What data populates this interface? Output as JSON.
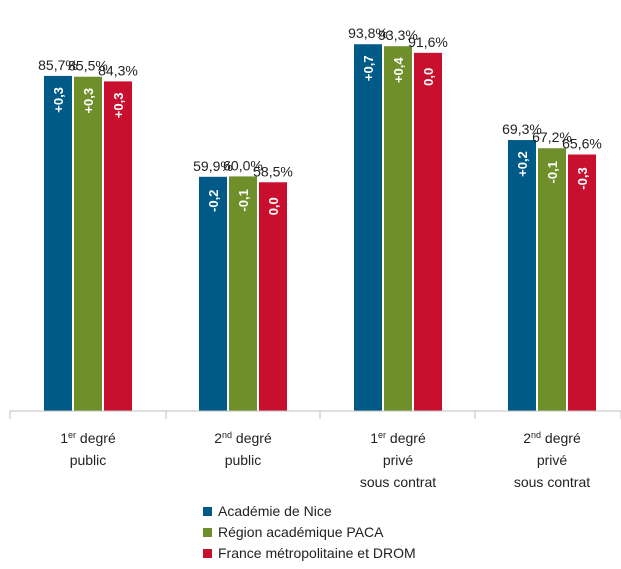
{
  "chart_data": {
    "type": "bar",
    "categories": [
      {
        "line1_main": "1",
        "line1_sup": "er",
        "line1_rest": " degré",
        "line2": "public",
        "line3": ""
      },
      {
        "line1_main": "2",
        "line1_sup": "nd",
        "line1_rest": " degré",
        "line2": "public",
        "line3": ""
      },
      {
        "line1_main": "1",
        "line1_sup": "er",
        "line1_rest": " degré",
        "line2": "privé",
        "line3": "sous contrat"
      },
      {
        "line1_main": "2",
        "line1_sup": "nd",
        "line1_rest": " degré",
        "line2": "privé",
        "line3": "sous contrat"
      }
    ],
    "series": [
      {
        "name": "Académie de Nice",
        "color": "#005a87",
        "values": [
          85.7,
          59.9,
          93.8,
          69.3
        ],
        "value_labels": [
          "85,7%",
          "59,9%",
          "93,8%",
          "69,3%"
        ],
        "delta_labels": [
          "+0,3",
          "-0,2",
          "+0,7",
          "+0,2"
        ]
      },
      {
        "name": "Région académique PACA",
        "color": "#6f8f2b",
        "values": [
          85.5,
          60.0,
          93.3,
          67.2
        ],
        "value_labels": [
          "85,5%",
          "60,0%",
          "93,3%",
          "67,2%"
        ],
        "delta_labels": [
          "+0,3",
          "-0,1",
          "+0,4",
          "-0,1"
        ]
      },
      {
        "name": "France métropolitaine et DROM",
        "color": "#c8102e",
        "values": [
          84.3,
          58.5,
          91.6,
          65.6
        ],
        "value_labels": [
          "84,3%",
          "58,5%",
          "91,6%",
          "65,6%"
        ],
        "delta_labels": [
          "+0,3",
          "0,0",
          "0,0",
          "-0,3"
        ]
      }
    ],
    "ylim": [
      0,
      100
    ],
    "grid": false,
    "legend_position": "bottom-center"
  }
}
